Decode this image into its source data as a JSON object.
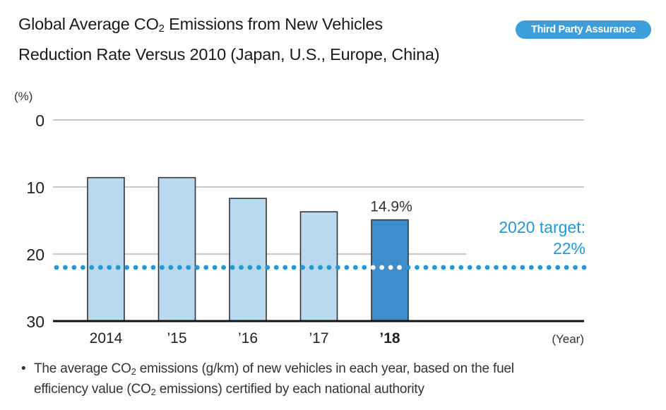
{
  "header": {
    "title_line1_prefix": "Global Average CO",
    "title_line1_sub": "2",
    "title_line1_suffix": " Emissions from New Vehicles",
    "title_line2": "Reduction Rate Versus 2010 (Japan, U.S., Europe, China)",
    "badge_label": "Third Party Assurance"
  },
  "colors": {
    "bar_light": "#b9d9f0",
    "bar_highlight": "#3f8ecb",
    "target": "#1e9ad6",
    "badge": "#3c9fdc"
  },
  "chart_data": {
    "type": "bar",
    "title": "Global Average CO2 Emissions from New Vehicles Reduction Rate Versus 2010 (Japan, U.S., Europe, China)",
    "xlabel": "(Year)",
    "ylabel": "(%)",
    "ylim": [
      0,
      30
    ],
    "y_inverted": true,
    "yticks": [
      "0",
      "10",
      "20",
      "30"
    ],
    "categories": [
      "2014",
      "’15",
      "’16",
      "’17",
      "’18"
    ],
    "values": [
      8.6,
      8.6,
      11.7,
      13.7,
      14.9
    ],
    "highlight_index": 4,
    "data_labels": [
      "",
      "",
      "",
      "",
      "14.9%"
    ],
    "reference_line": {
      "value": 22,
      "label_line1": "2020 target:",
      "label_line2": "22%",
      "style": "dotted"
    },
    "grid": true,
    "legend": "none"
  },
  "footnote": {
    "bullet": "•",
    "text_prefix": "The average CO",
    "text_sub": "2",
    "text_mid": " emissions (g/km) of new vehicles in each year, based on the fuel",
    "line2_prefix": "efficiency value (CO",
    "line2_sub": "2",
    "line2_suffix": " emissions) certified by each national authority"
  }
}
